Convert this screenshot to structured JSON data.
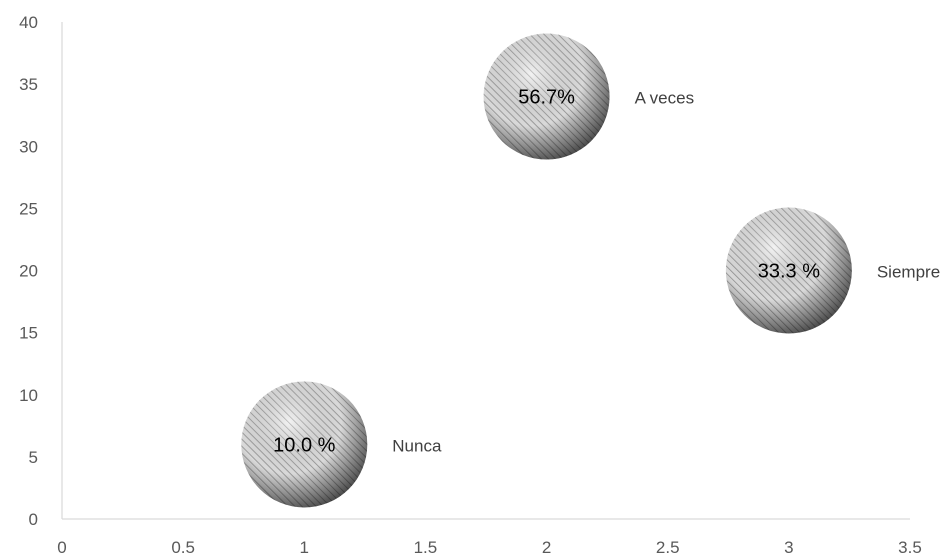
{
  "chart_data": {
    "type": "bubble",
    "x_ticks": [
      "0",
      "0.5",
      "1",
      "1.5",
      "2",
      "2.5",
      "3",
      "3.5"
    ],
    "y_ticks": [
      "0",
      "5",
      "10",
      "15",
      "20",
      "25",
      "30",
      "35",
      "40"
    ],
    "xlim": [
      0,
      3.5
    ],
    "ylim": [
      0,
      40
    ],
    "grid": false,
    "points": [
      {
        "x": 1,
        "y": 6,
        "size_label": "10.0 %",
        "category": "Nunca"
      },
      {
        "x": 2,
        "y": 34,
        "size_label": "56.7%",
        "category": "A veces"
      },
      {
        "x": 3,
        "y": 20,
        "size_label": "33.3 %",
        "category": "Siempre"
      }
    ]
  }
}
